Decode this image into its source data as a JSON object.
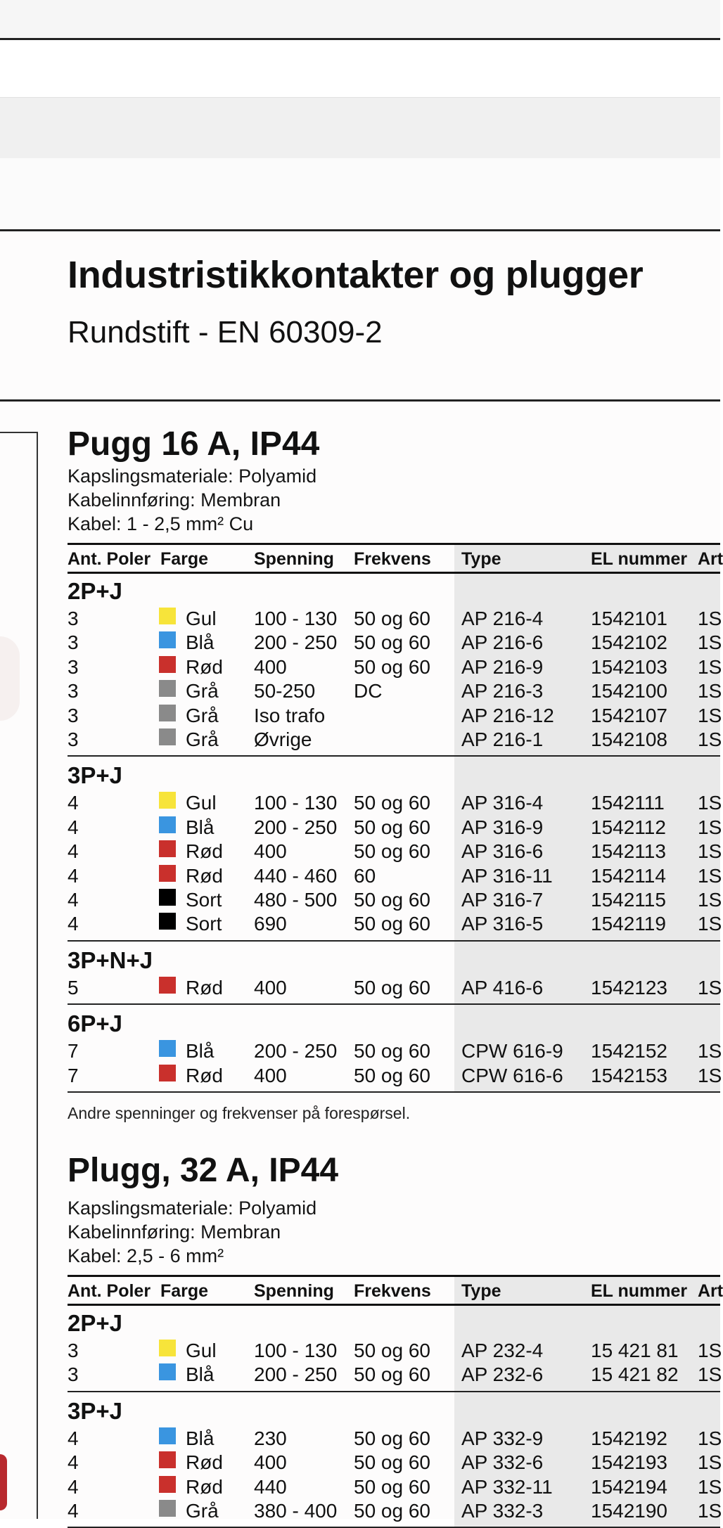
{
  "header": {
    "title": "Industristikkontakter og plugger",
    "subtitle": "Rundstift - EN 60309-2"
  },
  "columns": [
    "Ant. Poler",
    "Farge",
    "Spenning",
    "Frekvens",
    "Type",
    "EL nummer",
    "Art"
  ],
  "colors": {
    "Gul": "#f7e43a",
    "Blå": "#3a95e0",
    "Rød": "#c9302c",
    "Grå": "#8a8a8a",
    "Sort": "#000000"
  },
  "sections": [
    {
      "title": "Pugg 16 A, IP44",
      "specs": [
        "Kapslingsmateriale: Polyamid",
        "Kabelinnføring: Membran",
        "Kabel: 1 - 2,5 mm² Cu"
      ],
      "groups": [
        {
          "name": "2P+J",
          "rows": [
            {
              "poles": "3",
              "color": "Gul",
              "voltage": "100 - 130",
              "freq": "50 og 60",
              "type": "AP 216-4",
              "el": "1542101",
              "art": "1S"
            },
            {
              "poles": "3",
              "color": "Blå",
              "voltage": "200 - 250",
              "freq": "50 og 60",
              "type": "AP 216-6",
              "el": "1542102",
              "art": "1S"
            },
            {
              "poles": "3",
              "color": "Rød",
              "voltage": "400",
              "freq": "50 og 60",
              "type": "AP 216-9",
              "el": "1542103",
              "art": "1S"
            },
            {
              "poles": "3",
              "color": "Grå",
              "voltage": "50-250",
              "freq": "DC",
              "type": "AP 216-3",
              "el": "1542100",
              "art": "1S"
            },
            {
              "poles": "3",
              "color": "Grå",
              "voltage": "Iso trafo",
              "freq": "",
              "type": "AP 216-12",
              "el": "1542107",
              "art": "1S"
            },
            {
              "poles": "3",
              "color": "Grå",
              "voltage": "Øvrige",
              "freq": "",
              "type": "AP 216-1",
              "el": "1542108",
              "art": "1S"
            }
          ]
        },
        {
          "name": "3P+J",
          "rows": [
            {
              "poles": "4",
              "color": "Gul",
              "voltage": "100 - 130",
              "freq": "50 og 60",
              "type": "AP 316-4",
              "el": "1542111",
              "art": "1S"
            },
            {
              "poles": "4",
              "color": "Blå",
              "voltage": "200 - 250",
              "freq": "50 og 60",
              "type": "AP 316-9",
              "el": "1542112",
              "art": "1S"
            },
            {
              "poles": "4",
              "color": "Rød",
              "voltage": "400",
              "freq": "50 og 60",
              "type": "AP 316-6",
              "el": "1542113",
              "art": "1S"
            },
            {
              "poles": "4",
              "color": "Rød",
              "voltage": "440 - 460",
              "freq": "60",
              "type": "AP 316-11",
              "el": "1542114",
              "art": "1S"
            },
            {
              "poles": "4",
              "color": "Sort",
              "voltage": "480 - 500",
              "freq": "50 og 60",
              "type": "AP 316-7",
              "el": "1542115",
              "art": "1S"
            },
            {
              "poles": "4",
              "color": "Sort",
              "voltage": "690",
              "freq": "50 og 60",
              "type": "AP 316-5",
              "el": "1542119",
              "art": "1S"
            }
          ]
        },
        {
          "name": "3P+N+J",
          "rows": [
            {
              "poles": "5",
              "color": "Rød",
              "voltage": "400",
              "freq": "50 og 60",
              "type": "AP 416-6",
              "el": "1542123",
              "art": "1S"
            }
          ]
        },
        {
          "name": "6P+J",
          "rows": [
            {
              "poles": "7",
              "color": "Blå",
              "voltage": "200 - 250",
              "freq": "50 og 60",
              "type": "CPW 616-9",
              "el": "1542152",
              "art": "1S"
            },
            {
              "poles": "7",
              "color": "Rød",
              "voltage": "400",
              "freq": "50 og 60",
              "type": "CPW 616-6",
              "el": "1542153",
              "art": "1S"
            }
          ]
        }
      ],
      "note": "Andre spenninger og frekvenser på forespørsel."
    },
    {
      "title": "Plugg, 32 A, IP44",
      "specs": [
        "Kapslingsmateriale: Polyamid",
        "Kabelinnføring: Membran",
        "Kabel: 2,5 - 6 mm²"
      ],
      "groups": [
        {
          "name": "2P+J",
          "rows": [
            {
              "poles": "3",
              "color": "Gul",
              "voltage": "100 - 130",
              "freq": "50 og 60",
              "type": "AP 232-4",
              "el": "15 421 81",
              "art": "1S"
            },
            {
              "poles": "3",
              "color": "Blå",
              "voltage": "200 - 250",
              "freq": "50 og 60",
              "type": "AP 232-6",
              "el": "15 421 82",
              "art": "1S"
            }
          ]
        },
        {
          "name": "3P+J",
          "rows": [
            {
              "poles": "4",
              "color": "Blå",
              "voltage": "230",
              "freq": "50 og 60",
              "type": "AP 332-9",
              "el": "1542192",
              "art": "1S"
            },
            {
              "poles": "4",
              "color": "Rød",
              "voltage": "400",
              "freq": "50 og 60",
              "type": "AP 332-6",
              "el": "1542193",
              "art": "1S"
            },
            {
              "poles": "4",
              "color": "Rød",
              "voltage": "440",
              "freq": "50 og 60",
              "type": "AP 332-11",
              "el": "1542194",
              "art": "1S"
            },
            {
              "poles": "4",
              "color": "Grå",
              "voltage": "380 - 400",
              "freq": "50 og 60",
              "type": "AP 332-3",
              "el": "1542190",
              "art": "1S"
            }
          ]
        }
      ]
    }
  ]
}
